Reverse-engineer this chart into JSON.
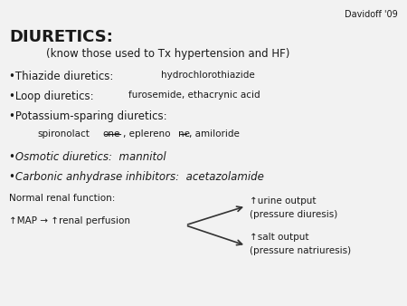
{
  "background_color": "#f2f2f2",
  "davidoff_text": "Davidoff '09",
  "title_bold": "DIURETICS:",
  "subtitle": "(know those used to Tx hypertension and HF)",
  "bullet1_main": "•Thiazide diuretics: ",
  "bullet1_small": "hydrochlorothiazide",
  "bullet2_main": "•Loop diuretics:  ",
  "bullet2_small": "furosemide, ethacrynic acid",
  "bullet3_main": "•Potassium-sparing diuretics:",
  "bullet3_sub_pre": "spironolact",
  "bullet3_sub_one1": "one",
  "bullet3_sub_mid": ", eplereno",
  "bullet3_sub_one2": "ne",
  "bullet3_sub_post": ", amiloride",
  "bullet4": "•Osmotic diuretics:  mannitol",
  "bullet5": "•Carbonic anhydrase inhibitors:  acetazolamide",
  "normal_renal": "Normal renal function:",
  "map_text": "↑MAP → ↑renal perfusion",
  "urine_text1": "↑urine output",
  "urine_text2": "(pressure diuresis)",
  "salt_text1": "↑salt output",
  "salt_text2": "(pressure natriuresis)",
  "font_color": "#1a1a1a",
  "arrow_color": "#333333"
}
